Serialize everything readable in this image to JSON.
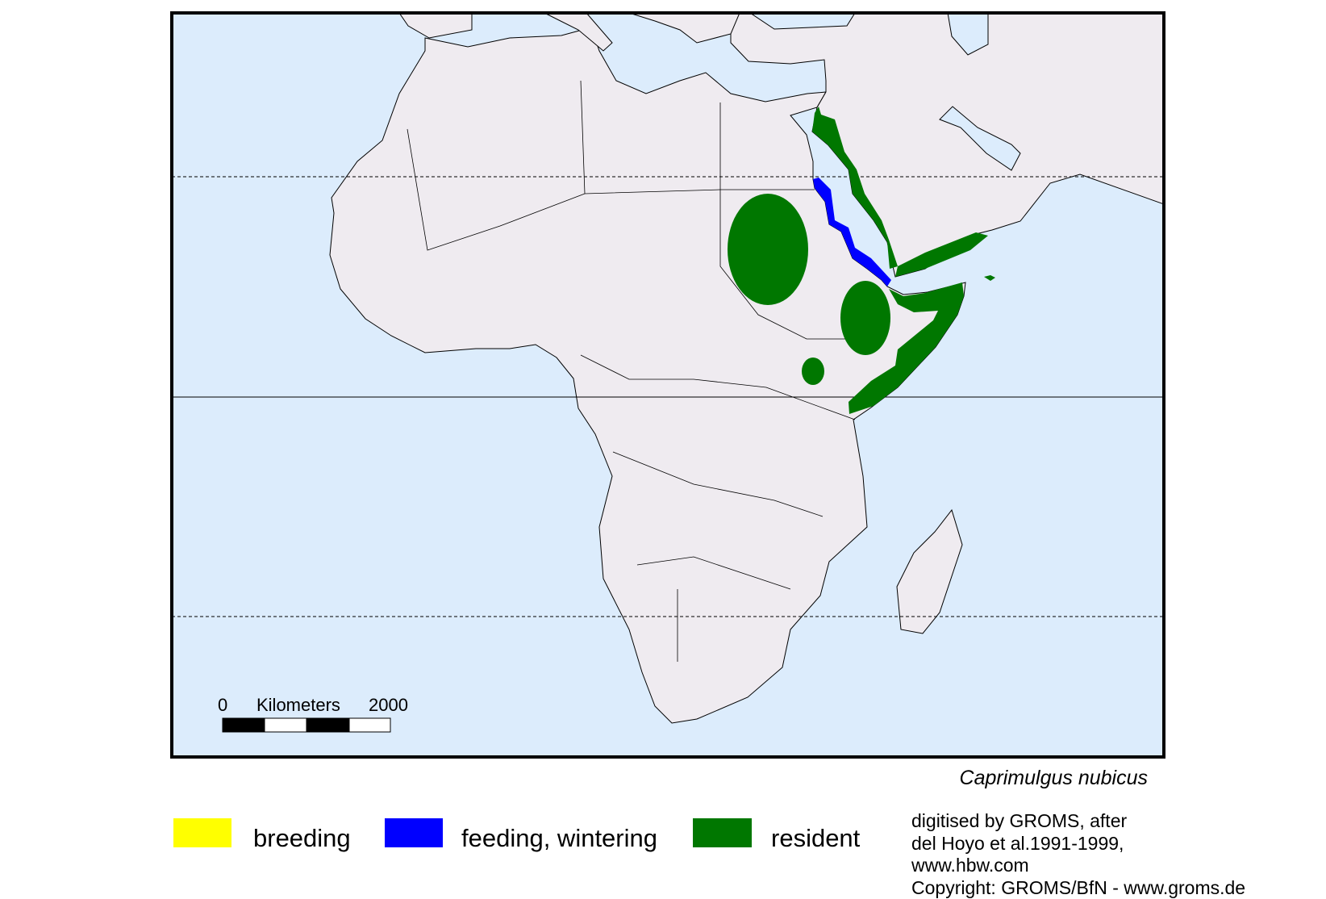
{
  "map": {
    "species": "Caprimulgus nubicus",
    "colors": {
      "sea": "#dcecfc",
      "land": "#efebf0",
      "border": "#000000",
      "frame": "#000000"
    },
    "scale_bar": {
      "start_label": "0",
      "unit_label": "Kilometers",
      "end_label": "2000"
    },
    "graticule": [
      "Tropic of Cancer (dashed)",
      "Equator (solid)",
      "Tropic of Capricorn (dashed)"
    ]
  },
  "legend": {
    "items": [
      {
        "label": "breeding",
        "color": "#ffff00"
      },
      {
        "label": "feeding, wintering",
        "color": "#0000ff"
      },
      {
        "label": "resident",
        "color": "#007700"
      }
    ]
  },
  "credits": {
    "lines": [
      "digitised by GROMS, after",
      "del Hoyo et al.1991-1999,",
      "www.hbw.com",
      "Copyright: GROMS/BfN - www.groms.de"
    ]
  }
}
